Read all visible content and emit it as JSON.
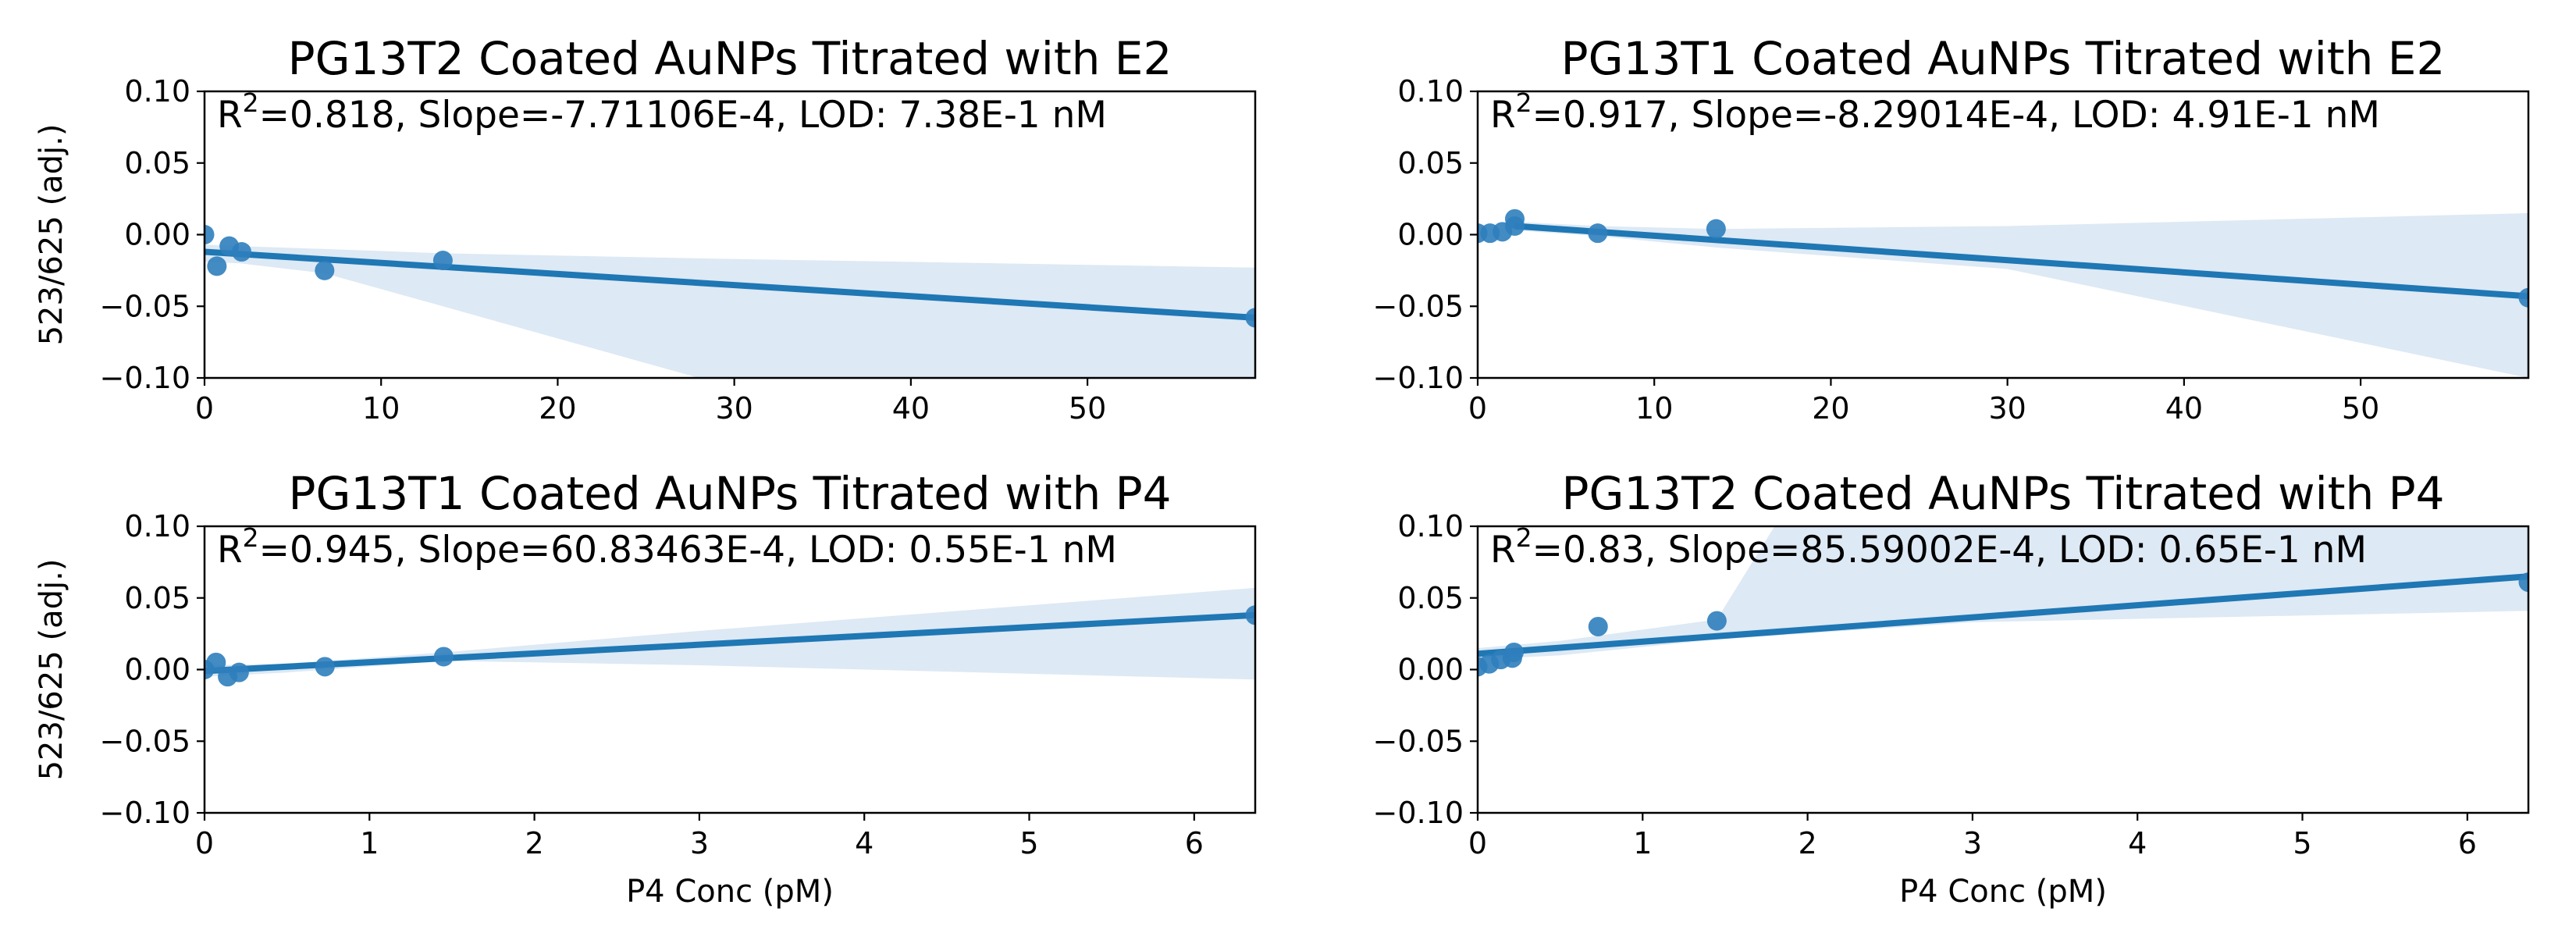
{
  "colors": {
    "line": "#1f77b4",
    "point": "#2f7ebc",
    "band": "#dde9f4",
    "axis": "#000000"
  },
  "chart_data": [
    {
      "type": "scatter",
      "title": "PG13T2 Coated AuNPs Titrated with E2",
      "annotation": {
        "r2_prefix": "R",
        "r2_exp": "2",
        "rest": "=0.818, Slope=-7.71106E-4, LOD: 7.38E-1 nM"
      },
      "xlabel": "",
      "ylabel": "523/625 (adj.)",
      "xlim": [
        0,
        59.5
      ],
      "ylim": [
        -0.1,
        0.1
      ],
      "xticks": [
        0,
        10,
        20,
        30,
        40,
        50
      ],
      "xtick_labels": [
        "0",
        "10",
        "20",
        "30",
        "40",
        "50"
      ],
      "yticks": [
        -0.1,
        -0.05,
        0.0,
        0.05,
        0.1
      ],
      "ytick_labels": [
        "−0.10",
        "−0.05",
        "0.00",
        "0.05",
        "0.10"
      ],
      "points": [
        [
          0,
          0.0
        ],
        [
          0.7,
          -0.022
        ],
        [
          1.4,
          -0.008
        ],
        [
          2.1,
          -0.012
        ],
        [
          6.8,
          -0.025
        ],
        [
          13.5,
          -0.018
        ],
        [
          59.5,
          -0.058
        ]
      ],
      "fit": {
        "x": [
          0,
          59.5
        ],
        "y": [
          -0.012,
          -0.058
        ]
      },
      "band": {
        "upper": [
          [
            0,
            -0.007
          ],
          [
            2,
            -0.008
          ],
          [
            6.8,
            -0.01
          ],
          [
            13.5,
            -0.013
          ],
          [
            30,
            -0.017
          ],
          [
            59.5,
            -0.023
          ]
        ],
        "lower": [
          [
            0,
            -0.019
          ],
          [
            2,
            -0.02
          ],
          [
            6.8,
            -0.027
          ],
          [
            13.5,
            -0.05
          ],
          [
            28,
            -0.1
          ],
          [
            59.5,
            -0.1
          ]
        ]
      }
    },
    {
      "type": "scatter",
      "title": "PG13T1 Coated AuNPs Titrated with E2",
      "annotation": {
        "r2_prefix": "R",
        "r2_exp": "2",
        "rest": "=0.917, Slope=-8.29014E-4, LOD: 4.91E-1 nM"
      },
      "xlabel": "",
      "ylabel": "",
      "xlim": [
        0,
        59.5
      ],
      "ylim": [
        -0.1,
        0.1
      ],
      "xticks": [
        0,
        10,
        20,
        30,
        40,
        50
      ],
      "xtick_labels": [
        "0",
        "10",
        "20",
        "30",
        "40",
        "50"
      ],
      "yticks": [
        -0.1,
        -0.05,
        0.0,
        0.05,
        0.1
      ],
      "ytick_labels": [
        "−0.10",
        "−0.05",
        "0.00",
        "0.05",
        "0.10"
      ],
      "points": [
        [
          0,
          0.001
        ],
        [
          0.7,
          0.001
        ],
        [
          1.4,
          0.002
        ],
        [
          2.1,
          0.006
        ],
        [
          2.1,
          0.011
        ],
        [
          6.8,
          0.001
        ],
        [
          13.5,
          0.004
        ],
        [
          59.5,
          -0.044
        ]
      ],
      "fit": {
        "x": [
          2.1,
          59.5
        ],
        "y": [
          0.006,
          -0.043
        ]
      },
      "band": {
        "upper": [
          [
            2.1,
            0.009
          ],
          [
            6.8,
            0.006
          ],
          [
            13.5,
            0.004
          ],
          [
            30,
            0.006
          ],
          [
            59.5,
            0.015
          ]
        ],
        "lower": [
          [
            2.1,
            0.003
          ],
          [
            6.8,
            -0.001
          ],
          [
            13.5,
            -0.009
          ],
          [
            30,
            -0.024
          ],
          [
            59.5,
            -0.1
          ]
        ]
      }
    },
    {
      "type": "scatter",
      "title": "PG13T1 Coated AuNPs Titrated with P4",
      "annotation": {
        "r2_prefix": "R",
        "r2_exp": "2",
        "rest": "=0.945, Slope=60.83463E-4, LOD: 0.55E-1 nM"
      },
      "xlabel": "P4 Conc (pM)",
      "ylabel": "523/625 (adj.)",
      "xlim": [
        0,
        6.37
      ],
      "ylim": [
        -0.1,
        0.1
      ],
      "xticks": [
        0,
        1,
        2,
        3,
        4,
        5,
        6
      ],
      "xtick_labels": [
        "0",
        "1",
        "2",
        "3",
        "4",
        "5",
        "6"
      ],
      "yticks": [
        -0.1,
        -0.05,
        0.0,
        0.05,
        0.1
      ],
      "ytick_labels": [
        "−0.10",
        "−0.05",
        "0.00",
        "0.05",
        "0.10"
      ],
      "points": [
        [
          0,
          0.0
        ],
        [
          0.07,
          0.005
        ],
        [
          0.14,
          -0.005
        ],
        [
          0.21,
          -0.002
        ],
        [
          0.73,
          0.002
        ],
        [
          1.45,
          0.009
        ],
        [
          6.37,
          0.038
        ]
      ],
      "fit": {
        "x": [
          0,
          6.37
        ],
        "y": [
          -0.001,
          0.038
        ]
      },
      "band": {
        "upper": [
          [
            0,
            0.003
          ],
          [
            0.5,
            0.004
          ],
          [
            1.45,
            0.012
          ],
          [
            3,
            0.027
          ],
          [
            6.37,
            0.057
          ]
        ],
        "lower": [
          [
            0,
            -0.005
          ],
          [
            0.5,
            -0.002
          ],
          [
            1.45,
            0.006
          ],
          [
            2,
            0.005
          ],
          [
            3,
            0.003
          ],
          [
            6.37,
            -0.007
          ]
        ]
      }
    },
    {
      "type": "scatter",
      "title": "PG13T2 Coated AuNPs Titrated with P4",
      "annotation": {
        "r2_prefix": "R",
        "r2_exp": "2",
        "rest": "=0.83, Slope=85.59002E-4, LOD: 0.65E-1 nM"
      },
      "xlabel": "P4 Conc (pM)",
      "ylabel": "",
      "xlim": [
        0,
        6.37
      ],
      "ylim": [
        -0.1,
        0.1
      ],
      "xticks": [
        0,
        1,
        2,
        3,
        4,
        5,
        6
      ],
      "xtick_labels": [
        "0",
        "1",
        "2",
        "3",
        "4",
        "5",
        "6"
      ],
      "yticks": [
        -0.1,
        -0.05,
        0.0,
        0.05,
        0.1
      ],
      "ytick_labels": [
        "−0.10",
        "−0.05",
        "0.00",
        "0.05",
        "0.10"
      ],
      "points": [
        [
          0,
          0.002
        ],
        [
          0.07,
          0.004
        ],
        [
          0.14,
          0.007
        ],
        [
          0.21,
          0.008
        ],
        [
          0.22,
          0.012
        ],
        [
          0.73,
          0.03
        ],
        [
          1.45,
          0.034
        ],
        [
          6.37,
          0.061
        ]
      ],
      "fit": {
        "x": [
          0,
          6.37
        ],
        "y": [
          0.011,
          0.065
        ]
      },
      "band": {
        "upper": [
          [
            0,
            0.015
          ],
          [
            0.5,
            0.02
          ],
          [
            1.45,
            0.035
          ],
          [
            1.8,
            0.1
          ],
          [
            6.37,
            0.1
          ]
        ],
        "lower": [
          [
            0,
            0.007
          ],
          [
            0.5,
            0.01
          ],
          [
            1.45,
            0.021
          ],
          [
            3,
            0.033
          ],
          [
            6.37,
            0.041
          ]
        ]
      }
    }
  ]
}
